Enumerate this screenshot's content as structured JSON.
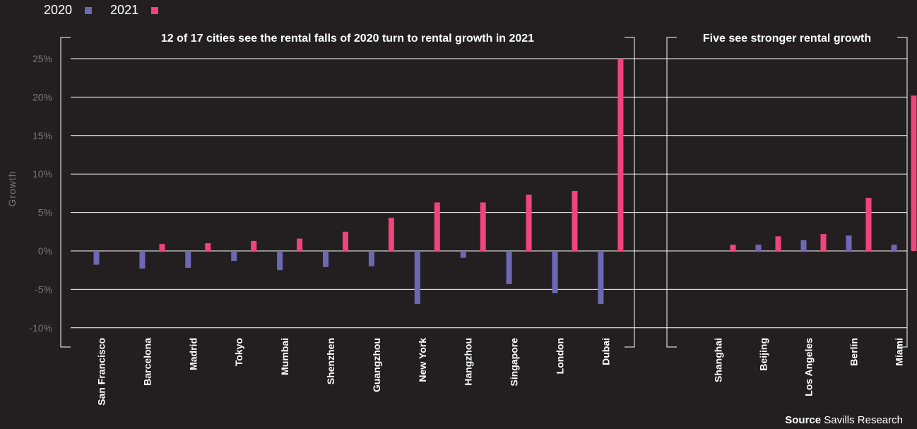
{
  "legend": {
    "items": [
      {
        "label": "2020",
        "color": "#6e68b4"
      },
      {
        "label": "2021",
        "color": "#f0447c"
      }
    ]
  },
  "source": {
    "label": "Source",
    "text": "Savills Research"
  },
  "chart_data": {
    "type": "bar",
    "ylabel": "Growth",
    "ylim": [
      -10,
      25
    ],
    "yticks": [
      25,
      20,
      15,
      10,
      5,
      0,
      -5,
      -10
    ],
    "ytick_labels": [
      "25%",
      "20%",
      "15%",
      "10%",
      "5%",
      "0%",
      "-5%",
      "-10%"
    ],
    "grid": true,
    "legend_position": "top-left",
    "groups": [
      {
        "title": "12 of 17 cities see the rental falls of 2020 turn to rental growth in 2021",
        "categories": [
          "San Francisco",
          "Barcelona",
          "Madrid",
          "Tokyo",
          "Mumbai",
          "Shenzhen",
          "Guangzhou",
          "New York",
          "Hangzhou",
          "Singapore",
          "London",
          "Dubai"
        ],
        "series": [
          {
            "name": "2020",
            "color": "#6e68b4",
            "values": [
              -1.8,
              -2.3,
              -2.2,
              -1.3,
              -2.5,
              -2.1,
              -2.0,
              -6.9,
              -0.9,
              -4.3,
              -5.5,
              -6.9
            ]
          },
          {
            "name": "2021",
            "color": "#f0447c",
            "values": [
              0.0,
              0.9,
              1.0,
              1.3,
              1.6,
              2.5,
              4.3,
              6.3,
              6.3,
              7.3,
              7.8,
              25.0
            ]
          }
        ]
      },
      {
        "title": "Five see stronger rental growth",
        "categories": [
          "Shanghai",
          "Beijing",
          "Los Angeles",
          "Berlin",
          "Miami"
        ],
        "series": [
          {
            "name": "2020",
            "color": "#6e68b4",
            "values": [
              0.0,
              0.8,
              1.4,
              2.0,
              0.8
            ]
          },
          {
            "name": "2021",
            "color": "#f0447c",
            "values": [
              0.8,
              1.9,
              2.2,
              6.9,
              20.2
            ]
          }
        ]
      }
    ]
  }
}
